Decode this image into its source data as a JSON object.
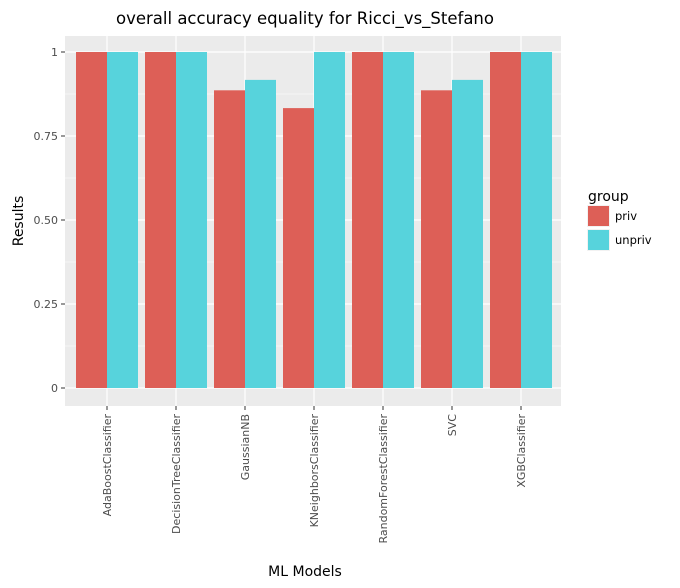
{
  "chart_data": {
    "type": "bar",
    "title": "overall accuracy equality for Ricci_vs_Stefano",
    "xlabel": "ML Models",
    "ylabel": "Results",
    "ylim": [
      0,
      1
    ],
    "yticks": [
      0,
      0.25,
      0.5,
      0.75,
      1
    ],
    "ytick_labels": [
      "0",
      "0.25",
      "0.50",
      "0.75",
      "1"
    ],
    "grid": true,
    "legend": {
      "title": "group",
      "placement": "right"
    },
    "categories": [
      "AdaBoostClassifier",
      "DecisionTreeClassifier",
      "GaussianNB",
      "KNeighborsClassifier",
      "RandomForestClassifier",
      "SVC",
      "XGBClassifier"
    ],
    "series": [
      {
        "name": "priv",
        "color": "#dd5f57",
        "values": [
          1.0,
          1.0,
          0.886,
          0.833,
          1.0,
          0.886,
          1.0
        ]
      },
      {
        "name": "unpriv",
        "color": "#57d3dc",
        "values": [
          1.0,
          1.0,
          0.917,
          1.0,
          1.0,
          0.917,
          1.0
        ]
      }
    ]
  }
}
